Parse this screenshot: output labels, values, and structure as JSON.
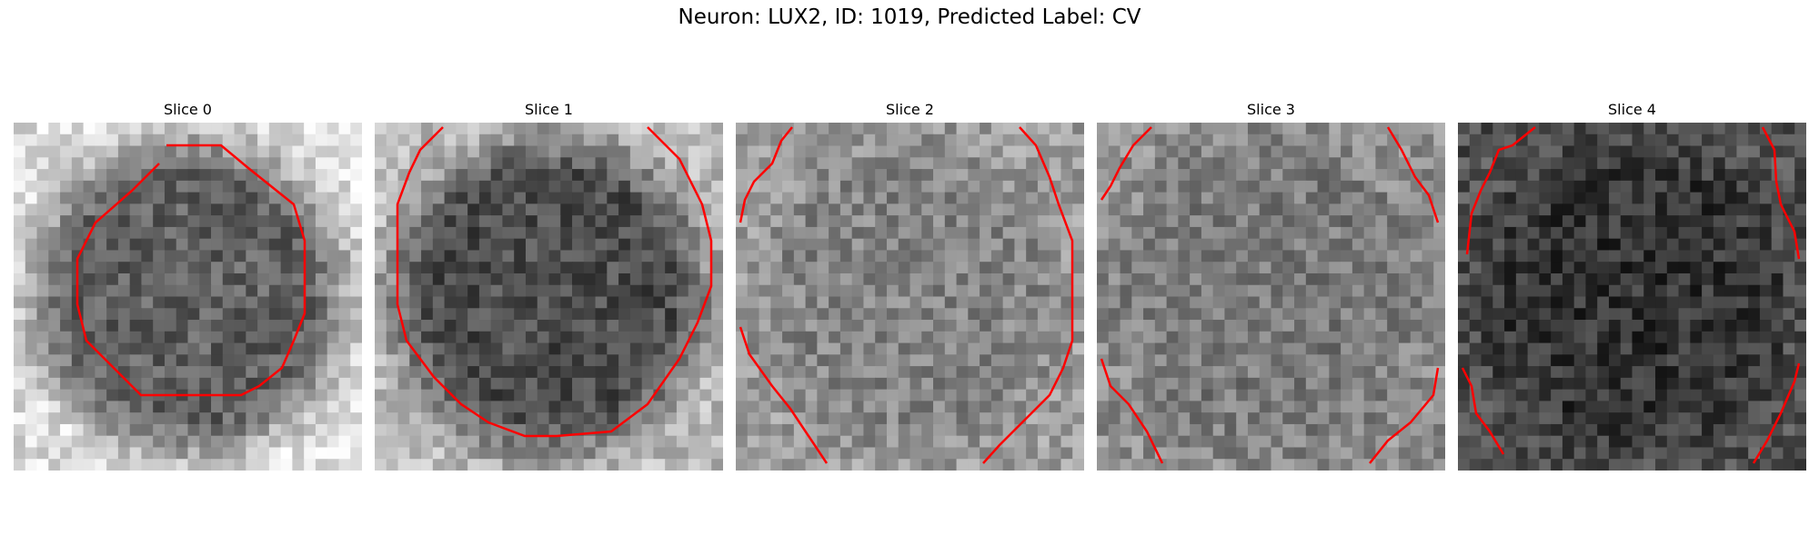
{
  "figure": {
    "title": "Neuron: LUX2, ID: 1019, Predicted Label: CV",
    "contour_color": "#ff0000",
    "panels": [
      {
        "title": "Slice 0",
        "mean_tone": 0.62,
        "blob_tone": 0.38
      },
      {
        "title": "Slice 1",
        "mean_tone": 0.48,
        "blob_tone": 0.3
      },
      {
        "title": "Slice 2",
        "mean_tone": 0.62,
        "blob_tone": 0.52
      },
      {
        "title": "Slice 3",
        "mean_tone": 0.56,
        "blob_tone": 0.48
      },
      {
        "title": "Slice 4",
        "mean_tone": 0.32,
        "blob_tone": 0.2
      }
    ]
  }
}
